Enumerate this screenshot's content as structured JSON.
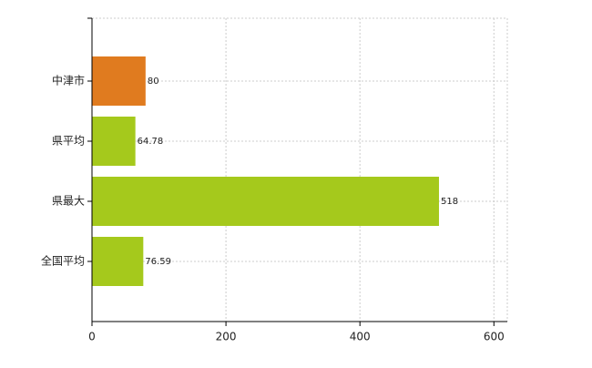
{
  "chart_data": {
    "type": "bar",
    "orientation": "horizontal",
    "categories": [
      "中津市",
      "県平均",
      "県最大",
      "全国平均"
    ],
    "values": [
      80,
      64.78,
      518,
      76.59
    ],
    "colors": [
      "#e07b1f",
      "#a5c91c",
      "#a5c91c",
      "#a5c91c"
    ],
    "xlim": [
      0,
      620
    ],
    "xticks": [
      0,
      200,
      400,
      600
    ],
    "grid": true
  }
}
